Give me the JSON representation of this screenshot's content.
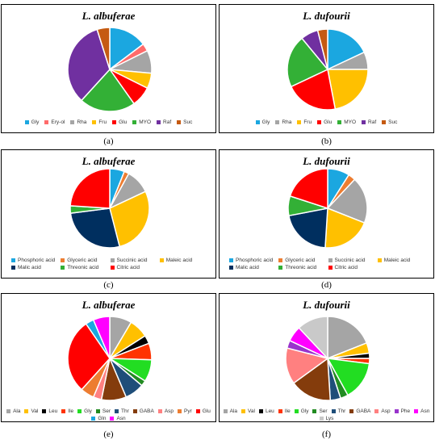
{
  "chart_data": [
    {
      "type": "pie",
      "title": "L. albuferae",
      "panel_label": "(a)",
      "legend_cols": 0,
      "categories": [
        "Gly",
        "Ery-ol",
        "Rha",
        "Fru",
        "Glu",
        "MYO",
        "Raf",
        "Suc"
      ],
      "values": [
        15,
        3,
        9,
        6,
        8,
        22,
        34,
        5
      ],
      "colors": [
        "#1ba7e0",
        "#ff6b6b",
        "#a5a5a5",
        "#ffc000",
        "#ff0000",
        "#33b036",
        "#7030a0",
        "#c55a11"
      ]
    },
    {
      "type": "pie",
      "title": "L. dufourii",
      "panel_label": "(b)",
      "legend_cols": 0,
      "categories": [
        "Gly",
        "Rha",
        "Fru",
        "Glu",
        "MYO",
        "Raf",
        "Suc"
      ],
      "values": [
        18,
        7,
        22,
        21,
        21,
        7,
        4
      ],
      "colors": [
        "#1ba7e0",
        "#a5a5a5",
        "#ffc000",
        "#ff0000",
        "#33b036",
        "#7030a0",
        "#c55a11"
      ]
    },
    {
      "type": "pie",
      "title": "L. albuferae",
      "panel_label": "(c)",
      "legend_cols": 4,
      "categories": [
        "Phosphoric acid",
        "Glyceric acid",
        "Succinic acid",
        "Maleic acid",
        "Malic acid",
        "Threonic acid",
        "Citric acid"
      ],
      "values": [
        6,
        2,
        10,
        28,
        27,
        3,
        24
      ],
      "colors": [
        "#1ba7e0",
        "#ed7d31",
        "#a5a5a5",
        "#ffc000",
        "#002f5f",
        "#33b036",
        "#ff0000"
      ]
    },
    {
      "type": "pie",
      "title": "L. dufourii",
      "panel_label": "(d)",
      "legend_cols": 4,
      "categories": [
        "Phosphoric acid",
        "Glyceric acid",
        "Succinic acid",
        "Maleic acid",
        "Malic acid",
        "Threonic acid",
        "Citric acid"
      ],
      "values": [
        9,
        3,
        19,
        20,
        21,
        8,
        20
      ],
      "colors": [
        "#1ba7e0",
        "#ed7d31",
        "#a5a5a5",
        "#ffc000",
        "#002f5f",
        "#33b036",
        "#ff0000"
      ]
    },
    {
      "type": "pie",
      "title": "L. albuferae",
      "panel_label": "(e)",
      "legend_cols": 0,
      "categories": [
        "Ala",
        "Val",
        "Leu",
        "Ile",
        "Gly",
        "Ser",
        "Thr",
        "GABA",
        "Asp",
        "Pyr",
        "Glu",
        "Gln",
        "Asn"
      ],
      "values": [
        8,
        7,
        3,
        6,
        8,
        2,
        7,
        9,
        3,
        5,
        27,
        3,
        6
      ],
      "colors": [
        "#a5a5a5",
        "#ffc000",
        "#000000",
        "#ff3300",
        "#22dd22",
        "#228b22",
        "#1f4e79",
        "#843c0c",
        "#ff8080",
        "#ed7d31",
        "#ff0000",
        "#1ba7e0",
        "#ff00ff"
      ]
    },
    {
      "type": "pie",
      "title": "L. dufourii",
      "panel_label": "(f)",
      "legend_cols": 0,
      "categories": [
        "Ala",
        "Val",
        "Leu",
        "Ile",
        "Gly",
        "Ser",
        "Thr",
        "GABA",
        "Asp",
        "Phe",
        "Asn",
        "Lys"
      ],
      "values": [
        19,
        4,
        2,
        2,
        15,
        3,
        4,
        16,
        14,
        3,
        6,
        12
      ],
      "colors": [
        "#a5a5a5",
        "#ffc000",
        "#000000",
        "#ff3300",
        "#22dd22",
        "#228b22",
        "#1f4e79",
        "#843c0c",
        "#ff8080",
        "#9933cc",
        "#ff00ff",
        "#c9c9c9"
      ]
    }
  ]
}
